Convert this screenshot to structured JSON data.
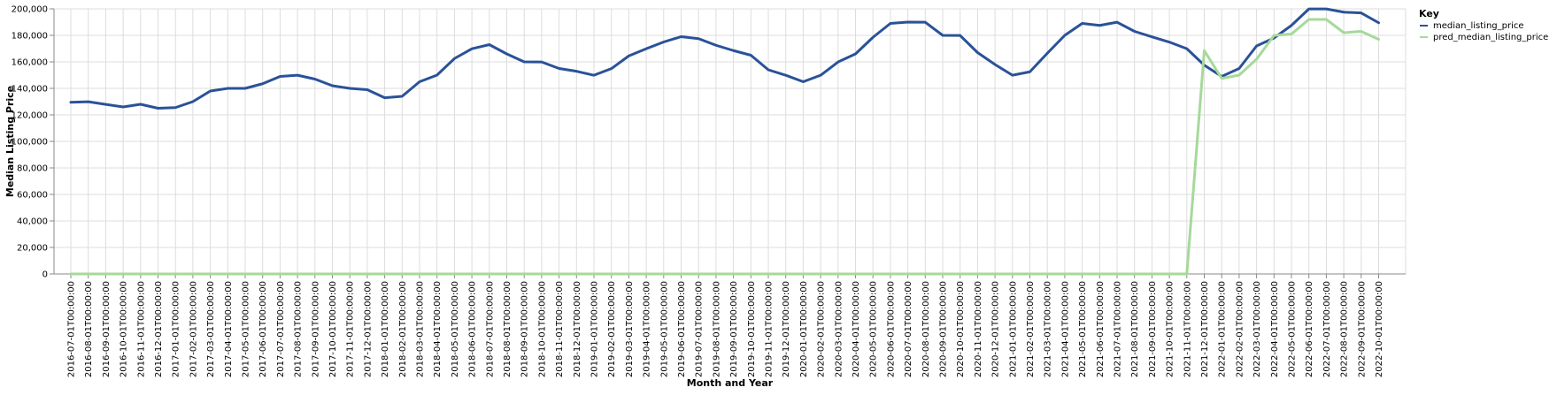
{
  "chart_data": {
    "type": "line",
    "xlabel": "Month and Year",
    "ylabel": "Median Listing Price",
    "ylim": [
      0,
      200000
    ],
    "yticks": [
      0,
      20000,
      40000,
      60000,
      80000,
      100000,
      120000,
      140000,
      160000,
      180000,
      200000
    ],
    "ytick_labels": [
      "0",
      "20,000",
      "40,000",
      "60,000",
      "80,000",
      "100,000",
      "120,000",
      "140,000",
      "160,000",
      "180,000",
      "200,000"
    ],
    "grid": true,
    "legend": {
      "title": "Key",
      "placement": "top-right"
    },
    "x": [
      "2016-07-01T00:00:00",
      "2016-08-01T00:00:00",
      "2016-09-01T00:00:00",
      "2016-10-01T00:00:00",
      "2016-11-01T00:00:00",
      "2016-12-01T00:00:00",
      "2017-01-01T00:00:00",
      "2017-02-01T00:00:00",
      "2017-03-01T00:00:00",
      "2017-04-01T00:00:00",
      "2017-05-01T00:00:00",
      "2017-06-01T00:00:00",
      "2017-07-01T00:00:00",
      "2017-08-01T00:00:00",
      "2017-09-01T00:00:00",
      "2017-10-01T00:00:00",
      "2017-11-01T00:00:00",
      "2017-12-01T00:00:00",
      "2018-01-01T00:00:00",
      "2018-02-01T00:00:00",
      "2018-03-01T00:00:00",
      "2018-04-01T00:00:00",
      "2018-05-01T00:00:00",
      "2018-06-01T00:00:00",
      "2018-07-01T00:00:00",
      "2018-08-01T00:00:00",
      "2018-09-01T00:00:00",
      "2018-10-01T00:00:00",
      "2018-11-01T00:00:00",
      "2018-12-01T00:00:00",
      "2019-01-01T00:00:00",
      "2019-02-01T00:00:00",
      "2019-03-01T00:00:00",
      "2019-04-01T00:00:00",
      "2019-05-01T00:00:00",
      "2019-06-01T00:00:00",
      "2019-07-01T00:00:00",
      "2019-08-01T00:00:00",
      "2019-09-01T00:00:00",
      "2019-10-01T00:00:00",
      "2019-11-01T00:00:00",
      "2019-12-01T00:00:00",
      "2020-01-01T00:00:00",
      "2020-02-01T00:00:00",
      "2020-03-01T00:00:00",
      "2020-04-01T00:00:00",
      "2020-05-01T00:00:00",
      "2020-06-01T00:00:00",
      "2020-07-01T00:00:00",
      "2020-08-01T00:00:00",
      "2020-09-01T00:00:00",
      "2020-10-01T00:00:00",
      "2020-11-01T00:00:00",
      "2020-12-01T00:00:00",
      "2021-01-01T00:00:00",
      "2021-02-01T00:00:00",
      "2021-03-01T00:00:00",
      "2021-04-01T00:00:00",
      "2021-05-01T00:00:00",
      "2021-06-01T00:00:00",
      "2021-07-01T00:00:00",
      "2021-08-01T00:00:00",
      "2021-09-01T00:00:00",
      "2021-10-01T00:00:00",
      "2021-11-01T00:00:00",
      "2021-12-01T00:00:00",
      "2022-01-01T00:00:00",
      "2022-02-01T00:00:00",
      "2022-03-01T00:00:00",
      "2022-04-01T00:00:00",
      "2022-05-01T00:00:00",
      "2022-06-01T00:00:00",
      "2022-07-01T00:00:00",
      "2022-08-01T00:00:00",
      "2022-09-01T00:00:00",
      "2022-10-01T00:00:00"
    ],
    "series": [
      {
        "name": "median_listing_price",
        "color": "#2a5298",
        "values": [
          129500,
          129900,
          127900,
          126000,
          128000,
          125000,
          125500,
          130000,
          138000,
          140000,
          140000,
          143500,
          149000,
          149900,
          147000,
          142000,
          140000,
          139000,
          132900,
          134000,
          145000,
          150000,
          162500,
          169900,
          173000,
          166000,
          160000,
          159900,
          155000,
          152900,
          149900,
          154900,
          164500,
          169900,
          175000,
          179000,
          177500,
          172500,
          168500,
          165000,
          154000,
          149900,
          145000,
          149900,
          159900,
          166000,
          178500,
          189000,
          190000,
          189900,
          180000,
          179900,
          167000,
          158000,
          149900,
          152500,
          166500,
          180000,
          189000,
          187500,
          189900,
          183000,
          178900,
          174900,
          169900,
          157500,
          149000,
          155000,
          172000,
          178000,
          187500,
          199900,
          199900,
          197500,
          196900,
          189500
        ]
      },
      {
        "name": "pred_median_listing_price",
        "color": "#a6d99a",
        "values": [
          0,
          0,
          0,
          0,
          0,
          0,
          0,
          0,
          0,
          0,
          0,
          0,
          0,
          0,
          0,
          0,
          0,
          0,
          0,
          0,
          0,
          0,
          0,
          0,
          0,
          0,
          0,
          0,
          0,
          0,
          0,
          0,
          0,
          0,
          0,
          0,
          0,
          0,
          0,
          0,
          0,
          0,
          0,
          0,
          0,
          0,
          0,
          0,
          0,
          0,
          0,
          0,
          0,
          0,
          0,
          0,
          0,
          0,
          0,
          0,
          0,
          0,
          0,
          0,
          0,
          168500,
          147500,
          150000,
          162000,
          179900,
          181000,
          192000,
          192000,
          182000,
          183000,
          177000
        ]
      }
    ]
  }
}
